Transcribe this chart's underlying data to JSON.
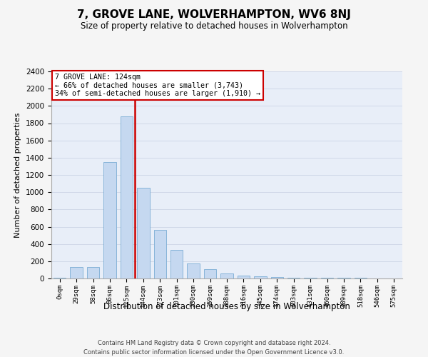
{
  "title": "7, GROVE LANE, WOLVERHAMPTON, WV6 8NJ",
  "subtitle": "Size of property relative to detached houses in Wolverhampton",
  "xlabel": "Distribution of detached houses by size in Wolverhampton",
  "ylabel": "Number of detached properties",
  "bin_labels": [
    "0sqm",
    "29sqm",
    "58sqm",
    "86sqm",
    "115sqm",
    "144sqm",
    "173sqm",
    "201sqm",
    "230sqm",
    "259sqm",
    "288sqm",
    "316sqm",
    "345sqm",
    "374sqm",
    "403sqm",
    "431sqm",
    "460sqm",
    "489sqm",
    "518sqm",
    "546sqm",
    "575sqm"
  ],
  "bar_heights": [
    10,
    130,
    130,
    1350,
    1880,
    1050,
    560,
    330,
    170,
    110,
    60,
    35,
    25,
    20,
    10,
    8,
    6,
    5,
    5,
    3,
    0
  ],
  "bar_color": "#c5d8f0",
  "bar_edge_color": "#7aadd4",
  "red_line_color": "#cc0000",
  "annotation_text": "7 GROVE LANE: 124sqm\n← 66% of detached houses are smaller (3,743)\n34% of semi-detached houses are larger (1,910) →",
  "annotation_box_color": "#ffffff",
  "annotation_box_edge": "#cc0000",
  "ylim": [
    0,
    2400
  ],
  "yticks": [
    0,
    200,
    400,
    600,
    800,
    1000,
    1200,
    1400,
    1600,
    1800,
    2000,
    2200,
    2400
  ],
  "grid_color": "#d0d8e8",
  "background_color": "#e8eef8",
  "fig_background": "#f5f5f5",
  "footer_line1": "Contains HM Land Registry data © Crown copyright and database right 2024.",
  "footer_line2": "Contains public sector information licensed under the Open Government Licence v3.0."
}
